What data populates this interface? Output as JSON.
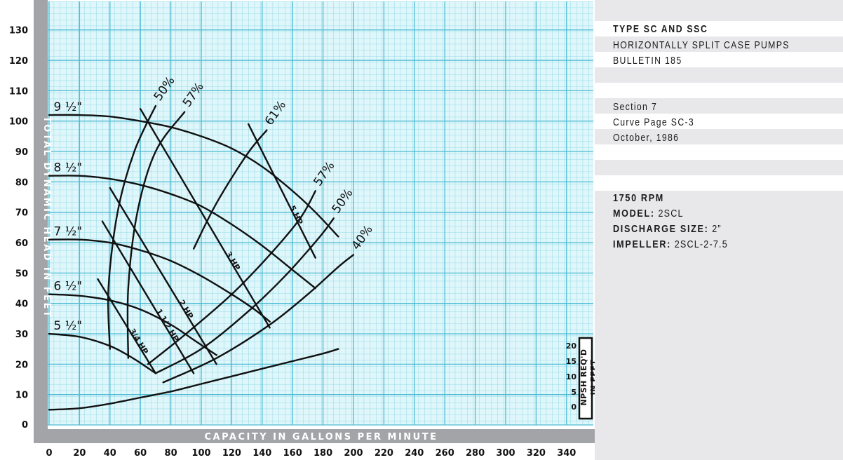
{
  "chart_data": {
    "type": "line",
    "title": "",
    "xlabel": "CAPACITY IN GALLONS PER MINUTE",
    "ylabel": "TOTAL DYNAMIC HEAD IN FEET",
    "xlim": [
      0,
      360
    ],
    "ylim": [
      0,
      135
    ],
    "x_ticks": [
      "0",
      "20",
      "40",
      "60",
      "80",
      "100",
      "120",
      "140",
      "160",
      "180",
      "200",
      "220",
      "240",
      "260",
      "280",
      "300",
      "320",
      "340"
    ],
    "y_ticks": [
      "0",
      "10",
      "20",
      "30",
      "40",
      "50",
      "60",
      "70",
      "80",
      "90",
      "100",
      "110",
      "120",
      "130"
    ],
    "grid": true,
    "series": [
      {
        "name": "9 ½\"",
        "x": [
          0,
          20,
          40,
          60,
          80,
          100,
          120,
          140,
          160,
          175,
          190
        ],
        "y": [
          102,
          102,
          101.5,
          100,
          98,
          95,
          91,
          85,
          77,
          70,
          62
        ]
      },
      {
        "name": "8 ½\"",
        "x": [
          0,
          20,
          40,
          60,
          80,
          100,
          120,
          140,
          160,
          175
        ],
        "y": [
          82,
          82,
          81,
          79,
          76,
          72,
          66,
          59,
          51,
          45
        ]
      },
      {
        "name": "7 ½\"",
        "x": [
          0,
          20,
          40,
          60,
          80,
          100,
          120,
          135,
          145
        ],
        "y": [
          61,
          61,
          60,
          57.5,
          54,
          49,
          43,
          38,
          34
        ]
      },
      {
        "name": "6 ½\"",
        "x": [
          0,
          20,
          40,
          60,
          80,
          95,
          110
        ],
        "y": [
          43,
          42.5,
          41,
          38,
          33,
          28,
          23
        ]
      },
      {
        "name": "5 ½\"",
        "x": [
          0,
          20,
          40,
          55,
          70
        ],
        "y": [
          30,
          29,
          26,
          22,
          17
        ]
      }
    ],
    "efficiency_curves": [
      {
        "label": "50%",
        "x": [
          40,
          39,
          45,
          56,
          70
        ],
        "y": [
          25,
          45,
          70,
          90,
          105
        ]
      },
      {
        "label": "57%",
        "x": [
          52,
          52,
          58,
          70,
          89
        ],
        "y": [
          22,
          45,
          70,
          90,
          103
        ]
      },
      {
        "label": "61%",
        "x": [
          95,
          110,
          130,
          143
        ],
        "y": [
          58,
          73,
          89,
          97
        ]
      },
      {
        "label": "57%",
        "x": [
          65,
          90,
          120,
          145,
          165,
          175
        ],
        "y": [
          20,
          30,
          43,
          56,
          68,
          77
        ]
      },
      {
        "label": "50%",
        "x": [
          70,
          100,
          130,
          155,
          178,
          187
        ],
        "y": [
          17,
          25,
          37,
          49,
          62,
          68
        ]
      },
      {
        "label": "40%",
        "x": [
          75,
          110,
          145,
          170,
          190,
          200
        ],
        "y": [
          14,
          22,
          33,
          43,
          52,
          56
        ]
      }
    ],
    "hp_lines": [
      {
        "label": "3/4 HP",
        "x": [
          32,
          70
        ],
        "y": [
          48,
          17
        ]
      },
      {
        "label": "1 1/2 HP",
        "x": [
          35,
          95
        ],
        "y": [
          67,
          17
        ]
      },
      {
        "label": "2 HP",
        "x": [
          40,
          110
        ],
        "y": [
          78,
          20
        ]
      },
      {
        "label": "3 HP",
        "x": [
          60,
          145
        ],
        "y": [
          104,
          32
        ]
      },
      {
        "label": "5 HP",
        "x": [
          131,
          175
        ],
        "y": [
          99,
          55
        ]
      }
    ],
    "npsh_series": {
      "name": "NPSH",
      "x": [
        0,
        20,
        40,
        60,
        80,
        100,
        120,
        140,
        160,
        180,
        190
      ],
      "y": [
        5,
        5.5,
        7,
        9,
        11,
        13.5,
        16,
        18.5,
        21,
        23.5,
        25
      ]
    }
  },
  "npsh_axis": {
    "title_line1": "NPSH REQ'D",
    "title_line2": "IN FEET",
    "ticks": [
      "20",
      "15",
      "10",
      "5",
      "0"
    ]
  },
  "info": {
    "title": "TYPE SC AND SSC",
    "subtitle": "HORIZONTALLY SPLIT CASE PUMPS",
    "bulletin": "BULLETIN 185",
    "section": "Section 7",
    "curve_page": "Curve Page SC-3",
    "date": "October, 1986",
    "rpm": "1750 RPM",
    "model_key": "MODEL:",
    "model_val": "2SCL",
    "discharge_key": "DISCHARGE SIZE:",
    "discharge_val": "2”",
    "impeller_key": "IMPELLER:",
    "impeller_val": "2SCL-2-7.5"
  },
  "colors": {
    "grid_bg": "#dff6fa",
    "grid_minor": "#7fd3e3",
    "grid_major": "#4ebbd3",
    "axis_band": "#a3a4a7",
    "curve": "#111111",
    "panel_bg": "#e8e8ea"
  }
}
